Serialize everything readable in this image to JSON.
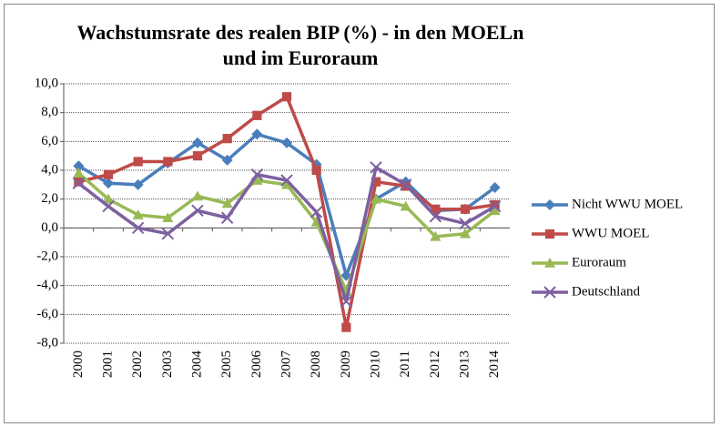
{
  "chart_data": {
    "type": "line",
    "title": [
      "Wachstumsrate des realen BIP (%) - in den MOELn",
      "und im Euroraum"
    ],
    "categories": [
      "2000",
      "2001",
      "2002",
      "2003",
      "2004",
      "2005",
      "2006",
      "2007",
      "2008",
      "2009",
      "2010",
      "2011",
      "2012",
      "2013",
      "2014"
    ],
    "series": [
      {
        "name": "Nicht WWU MOEL",
        "color": "#4a7ebb",
        "marker": "diamond",
        "values": [
          4.3,
          3.1,
          3.0,
          4.5,
          5.9,
          4.7,
          6.5,
          5.9,
          4.4,
          -3.3,
          2.0,
          3.2,
          1.2,
          1.3,
          2.8
        ]
      },
      {
        "name": "WWU MOEL",
        "color": "#be4b48",
        "marker": "square",
        "values": [
          3.2,
          3.7,
          4.6,
          4.6,
          5.0,
          6.2,
          7.8,
          9.1,
          4.0,
          -6.9,
          3.2,
          2.9,
          1.3,
          1.3,
          1.6
        ]
      },
      {
        "name": "Euroraum",
        "color": "#98b954",
        "marker": "triangle",
        "values": [
          3.8,
          2.0,
          0.9,
          0.7,
          2.2,
          1.7,
          3.3,
          3.0,
          0.4,
          -4.4,
          2.0,
          1.5,
          -0.6,
          -0.4,
          1.2
        ]
      },
      {
        "name": "Deutschland",
        "color": "#7d60a0",
        "marker": "x",
        "values": [
          3.1,
          1.5,
          0.0,
          -0.4,
          1.2,
          0.7,
          3.7,
          3.3,
          1.1,
          -5.1,
          4.2,
          3.0,
          0.8,
          0.3,
          1.5
        ]
      }
    ],
    "ylim": [
      -8,
      10
    ],
    "yticks": [
      {
        "value": -8,
        "label": "-8,0"
      },
      {
        "value": -6,
        "label": "-6,0"
      },
      {
        "value": -4,
        "label": "-4,0"
      },
      {
        "value": -2,
        "label": "-2,0"
      },
      {
        "value": 0,
        "label": "0,0"
      },
      {
        "value": 2,
        "label": "2,0"
      },
      {
        "value": 4,
        "label": "4,0"
      },
      {
        "value": 6,
        "label": "6,0"
      },
      {
        "value": 8,
        "label": "8,0"
      },
      {
        "value": 10,
        "label": "10,0"
      }
    ],
    "grid": true,
    "legend": "right"
  }
}
